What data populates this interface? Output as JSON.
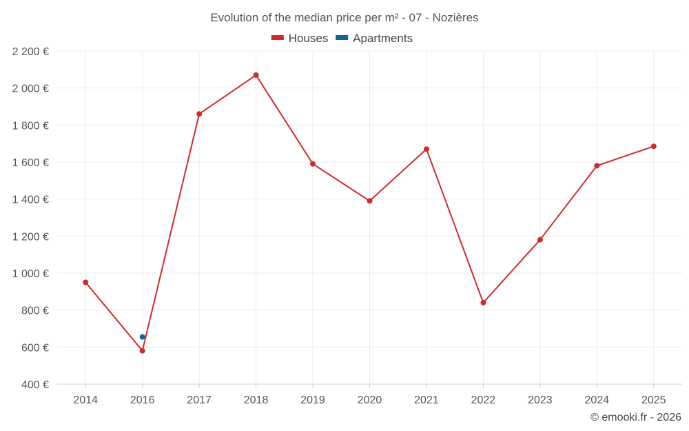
{
  "chart_data": {
    "type": "line",
    "title": "Evolution of the median price per m² - 07 - Nozières",
    "categories": [
      "2014",
      "2016",
      "2017",
      "2018",
      "2019",
      "2020",
      "2021",
      "2022",
      "2023",
      "2024",
      "2025"
    ],
    "series": [
      {
        "name": "Houses",
        "color": "#d12a2a",
        "values": [
          950,
          580,
          1860,
          2070,
          1590,
          1390,
          1670,
          840,
          1180,
          1580,
          1685
        ]
      },
      {
        "name": "Apartments",
        "color": "#0b6596",
        "values": [
          null,
          655,
          null,
          null,
          null,
          null,
          null,
          null,
          null,
          null,
          null
        ]
      }
    ],
    "ylim": [
      400,
      2200
    ],
    "yticks": [
      400,
      600,
      800,
      1000,
      1200,
      1400,
      1600,
      1800,
      2000,
      2200
    ],
    "ytick_labels": [
      "400 €",
      "600 €",
      "800 €",
      "1 000 €",
      "1 200 €",
      "1 400 €",
      "1 600 €",
      "1 800 €",
      "2 000 €",
      "2 200 €"
    ],
    "xlabel": "",
    "ylabel": "",
    "grid": true,
    "legend_position": "top-center"
  },
  "credit": "© emooki.fr - 2026"
}
